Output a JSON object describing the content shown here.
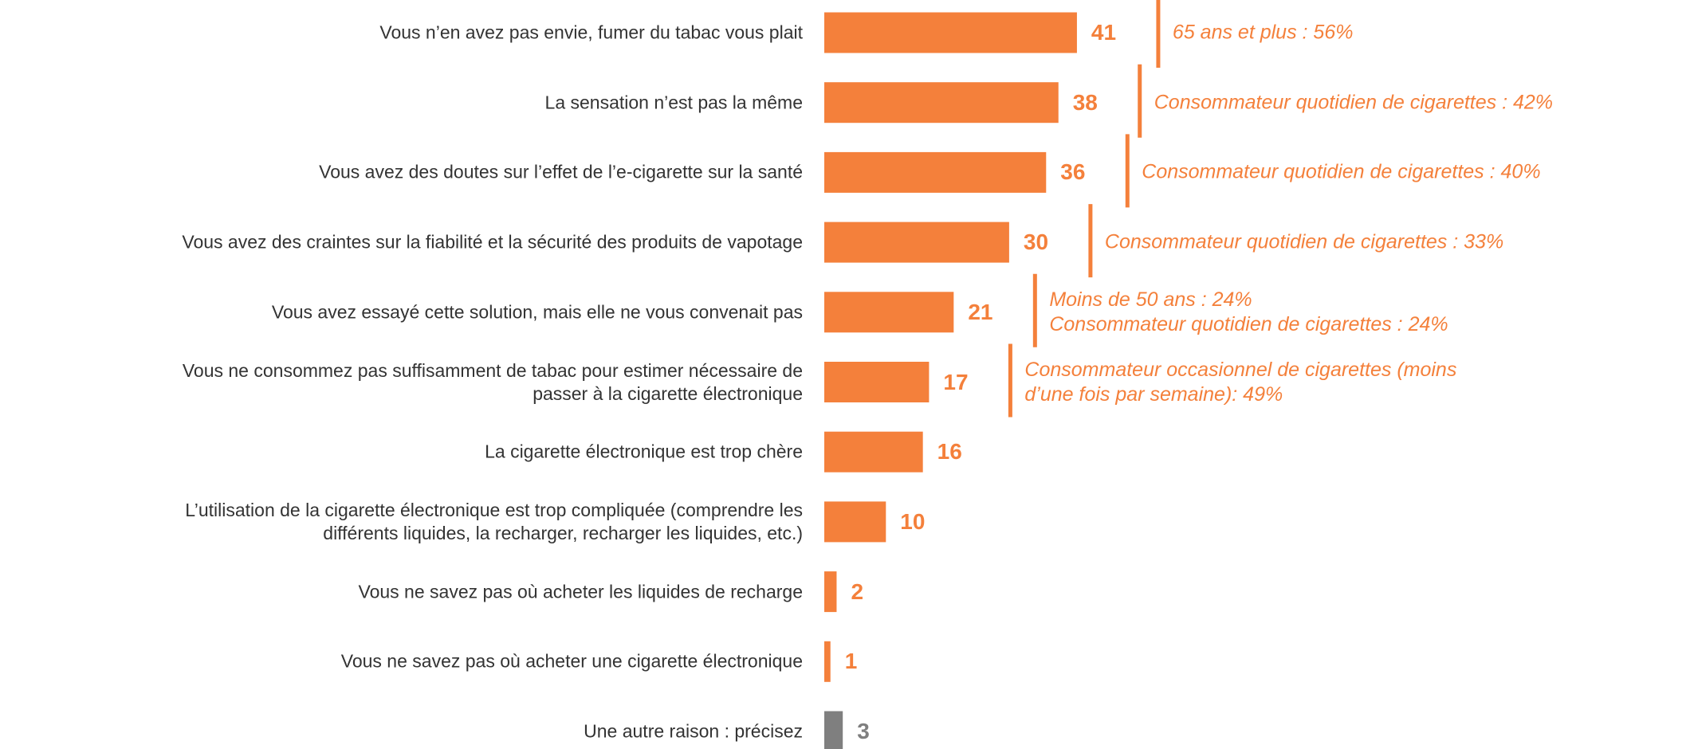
{
  "chart_data": {
    "type": "bar",
    "orientation": "horizontal",
    "categories": [
      "Vous n’en avez pas envie, fumer du tabac vous plait",
      "La sensation n’est pas la même",
      "Vous avez des doutes sur l’effet de l’e-cigarette sur la santé",
      "Vous avez des craintes sur la fiabilité et la sécurité des produits de vapotage",
      "Vous avez essayé cette solution, mais elle ne vous convenait pas",
      "Vous ne consommez pas suffisamment de tabac pour estimer nécessaire de\npasser à la cigarette électronique",
      "La cigarette électronique est trop chère",
      "L’utilisation de la cigarette électronique est trop compliquée (comprendre les\ndifférents liquides, la recharger, recharger les liquides, etc.)",
      "Vous ne savez pas où acheter les liquides de recharge",
      "Vous ne savez pas où acheter une cigarette électronique",
      "Une autre raison : précisez"
    ],
    "values": [
      41,
      38,
      36,
      30,
      21,
      17,
      16,
      10,
      2,
      1,
      3
    ],
    "colors": [
      "#f4803b",
      "#f4803b",
      "#f4803b",
      "#f4803b",
      "#f4803b",
      "#f4803b",
      "#f4803b",
      "#f4803b",
      "#f4803b",
      "#f4803b",
      "#7f7f7f"
    ],
    "annotations": [
      "65 ans et plus : 56%",
      "Consommateur quotidien de cigarettes : 42%",
      "Consommateur quotidien de cigarettes : 40%",
      "Consommateur quotidien de cigarettes : 33%",
      "Moins de 50 ans : 24%\nConsommateur quotidien de cigarettes : 24%",
      "Consommateur occasionnel de cigarettes (moins\nd’une fois par semaine): 49%",
      null,
      null,
      null,
      null,
      null
    ]
  }
}
